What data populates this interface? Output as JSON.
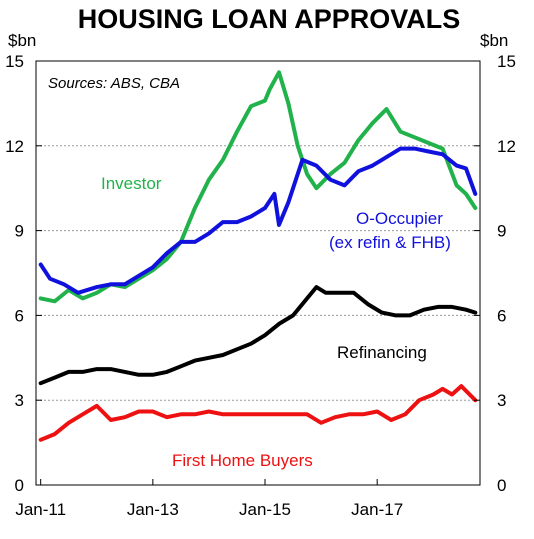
{
  "chart_data": {
    "type": "line",
    "title": "HOUSING LOAN APPROVALS",
    "y_unit_left": "$bn",
    "y_unit_right": "$bn",
    "source_note": "Sources: ABS, CBA",
    "ylim": [
      0,
      15
    ],
    "y_ticks": [
      "0",
      "3",
      "6",
      "9",
      "12",
      "15"
    ],
    "x_range": [
      "2011-01",
      "2018-10"
    ],
    "x_tick_labels": [
      "Jan-11",
      "Jan-13",
      "Jan-15",
      "Jan-17"
    ],
    "x_tick_dates": [
      "2011-01",
      "2013-01",
      "2015-01",
      "2017-01"
    ],
    "grid": "horizontal dotted",
    "series": [
      {
        "name": "Investor",
        "label": "Investor",
        "color": "#21B24B",
        "points": [
          [
            "2011-01",
            6.6
          ],
          [
            "2011-04",
            6.5
          ],
          [
            "2011-07",
            6.9
          ],
          [
            "2011-10",
            6.6
          ],
          [
            "2012-01",
            6.8
          ],
          [
            "2012-04",
            7.1
          ],
          [
            "2012-07",
            7.0
          ],
          [
            "2012-10",
            7.3
          ],
          [
            "2013-01",
            7.6
          ],
          [
            "2013-04",
            8.0
          ],
          [
            "2013-07",
            8.6
          ],
          [
            "2013-10",
            9.8
          ],
          [
            "2014-01",
            10.8
          ],
          [
            "2014-04",
            11.5
          ],
          [
            "2014-07",
            12.5
          ],
          [
            "2014-10",
            13.4
          ],
          [
            "2015-01",
            13.6
          ],
          [
            "2015-02",
            14.0
          ],
          [
            "2015-04",
            14.6
          ],
          [
            "2015-06",
            13.5
          ],
          [
            "2015-08",
            12.0
          ],
          [
            "2015-10",
            11.0
          ],
          [
            "2015-12",
            10.5
          ],
          [
            "2016-03",
            11.0
          ],
          [
            "2016-06",
            11.4
          ],
          [
            "2016-09",
            12.2
          ],
          [
            "2016-12",
            12.8
          ],
          [
            "2017-03",
            13.3
          ],
          [
            "2017-06",
            12.5
          ],
          [
            "2017-09",
            12.3
          ],
          [
            "2017-12",
            12.1
          ],
          [
            "2018-03",
            11.9
          ],
          [
            "2018-06",
            10.6
          ],
          [
            "2018-08",
            10.3
          ],
          [
            "2018-10",
            9.8
          ]
        ]
      },
      {
        "name": "O-Occupier (ex refin & FHB)",
        "label": "O-Occupier",
        "label2": "(ex refin & FHB)",
        "color": "#1111DD",
        "points": [
          [
            "2011-01",
            7.8
          ],
          [
            "2011-03",
            7.3
          ],
          [
            "2011-06",
            7.1
          ],
          [
            "2011-09",
            6.8
          ],
          [
            "2012-01",
            7.0
          ],
          [
            "2012-04",
            7.1
          ],
          [
            "2012-07",
            7.1
          ],
          [
            "2012-10",
            7.4
          ],
          [
            "2013-01",
            7.7
          ],
          [
            "2013-04",
            8.2
          ],
          [
            "2013-07",
            8.6
          ],
          [
            "2013-10",
            8.6
          ],
          [
            "2014-01",
            8.9
          ],
          [
            "2014-04",
            9.3
          ],
          [
            "2014-07",
            9.3
          ],
          [
            "2014-10",
            9.5
          ],
          [
            "2015-01",
            9.8
          ],
          [
            "2015-03",
            10.3
          ],
          [
            "2015-04",
            9.2
          ],
          [
            "2015-06",
            10.0
          ],
          [
            "2015-09",
            11.5
          ],
          [
            "2015-12",
            11.3
          ],
          [
            "2016-03",
            10.8
          ],
          [
            "2016-06",
            10.6
          ],
          [
            "2016-09",
            11.1
          ],
          [
            "2016-12",
            11.3
          ],
          [
            "2017-03",
            11.6
          ],
          [
            "2017-06",
            11.9
          ],
          [
            "2017-09",
            11.9
          ],
          [
            "2017-12",
            11.8
          ],
          [
            "2018-03",
            11.7
          ],
          [
            "2018-06",
            11.3
          ],
          [
            "2018-08",
            11.2
          ],
          [
            "2018-10",
            10.3
          ]
        ]
      },
      {
        "name": "Refinancing",
        "label": "Refinancing",
        "color": "#000000",
        "points": [
          [
            "2011-01",
            3.6
          ],
          [
            "2011-04",
            3.8
          ],
          [
            "2011-07",
            4.0
          ],
          [
            "2011-10",
            4.0
          ],
          [
            "2012-01",
            4.1
          ],
          [
            "2012-04",
            4.1
          ],
          [
            "2012-07",
            4.0
          ],
          [
            "2012-10",
            3.9
          ],
          [
            "2013-01",
            3.9
          ],
          [
            "2013-04",
            4.0
          ],
          [
            "2013-07",
            4.2
          ],
          [
            "2013-10",
            4.4
          ],
          [
            "2014-01",
            4.5
          ],
          [
            "2014-04",
            4.6
          ],
          [
            "2014-07",
            4.8
          ],
          [
            "2014-10",
            5.0
          ],
          [
            "2015-01",
            5.3
          ],
          [
            "2015-04",
            5.7
          ],
          [
            "2015-07",
            6.0
          ],
          [
            "2015-10",
            6.6
          ],
          [
            "2015-12",
            7.0
          ],
          [
            "2016-02",
            6.8
          ],
          [
            "2016-05",
            6.8
          ],
          [
            "2016-08",
            6.8
          ],
          [
            "2016-11",
            6.4
          ],
          [
            "2017-02",
            6.1
          ],
          [
            "2017-05",
            6.0
          ],
          [
            "2017-08",
            6.0
          ],
          [
            "2017-11",
            6.2
          ],
          [
            "2018-02",
            6.3
          ],
          [
            "2018-05",
            6.3
          ],
          [
            "2018-08",
            6.2
          ],
          [
            "2018-10",
            6.1
          ]
        ]
      },
      {
        "name": "First Home Buyers",
        "label": "First Home Buyers",
        "color": "#EE1111",
        "points": [
          [
            "2011-01",
            1.6
          ],
          [
            "2011-04",
            1.8
          ],
          [
            "2011-07",
            2.2
          ],
          [
            "2011-10",
            2.5
          ],
          [
            "2012-01",
            2.8
          ],
          [
            "2012-04",
            2.3
          ],
          [
            "2012-07",
            2.4
          ],
          [
            "2012-10",
            2.6
          ],
          [
            "2013-01",
            2.6
          ],
          [
            "2013-04",
            2.4
          ],
          [
            "2013-07",
            2.5
          ],
          [
            "2013-10",
            2.5
          ],
          [
            "2014-01",
            2.6
          ],
          [
            "2014-04",
            2.5
          ],
          [
            "2014-07",
            2.5
          ],
          [
            "2014-10",
            2.5
          ],
          [
            "2015-01",
            2.5
          ],
          [
            "2015-04",
            2.5
          ],
          [
            "2015-07",
            2.5
          ],
          [
            "2015-10",
            2.5
          ],
          [
            "2016-01",
            2.2
          ],
          [
            "2016-04",
            2.4
          ],
          [
            "2016-07",
            2.5
          ],
          [
            "2016-10",
            2.5
          ],
          [
            "2017-01",
            2.6
          ],
          [
            "2017-04",
            2.3
          ],
          [
            "2017-07",
            2.5
          ],
          [
            "2017-10",
            3.0
          ],
          [
            "2018-01",
            3.2
          ],
          [
            "2018-03",
            3.4
          ],
          [
            "2018-05",
            3.2
          ],
          [
            "2018-07",
            3.5
          ],
          [
            "2018-10",
            3.0
          ]
        ]
      }
    ]
  }
}
